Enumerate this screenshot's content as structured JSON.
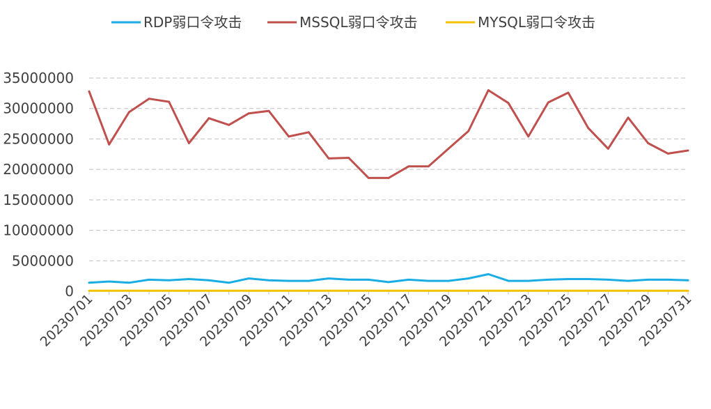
{
  "chart_data": {
    "type": "line",
    "title": "",
    "xlabel": "",
    "ylabel": "",
    "ylim": [
      0,
      35000000
    ],
    "yticks": [
      0,
      5000000,
      10000000,
      15000000,
      20000000,
      25000000,
      30000000,
      35000000
    ],
    "grid": "horizontal dashed",
    "legend_position": "top",
    "x": [
      "20230701",
      "20230702",
      "20230703",
      "20230704",
      "20230705",
      "20230706",
      "20230707",
      "20230708",
      "20230709",
      "20230710",
      "20230711",
      "20230712",
      "20230713",
      "20230714",
      "20230715",
      "20230716",
      "20230717",
      "20230718",
      "20230719",
      "20230720",
      "20230721",
      "20230722",
      "20230723",
      "20230724",
      "20230725",
      "20230726",
      "20230727",
      "20230728",
      "20230729",
      "20230730",
      "20230731"
    ],
    "x_tick_labels": [
      "20230701",
      "20230703",
      "20230705",
      "20230707",
      "20230709",
      "20230711",
      "20230713",
      "20230715",
      "20230717",
      "20230719",
      "20230721",
      "20230723",
      "20230725",
      "20230727",
      "20230729",
      "20230731"
    ],
    "series": [
      {
        "name": "RDP弱口令攻击",
        "color": "#1AADE4",
        "values": [
          1400000,
          1600000,
          1400000,
          1900000,
          1800000,
          2000000,
          1800000,
          1400000,
          2100000,
          1800000,
          1700000,
          1700000,
          2100000,
          1900000,
          1900000,
          1500000,
          1900000,
          1700000,
          1700000,
          2100000,
          2800000,
          1700000,
          1700000,
          1900000,
          2000000,
          2000000,
          1900000,
          1700000,
          1900000,
          1900000,
          1800000
        ]
      },
      {
        "name": "MSSQL弱口令攻击",
        "color": "#C0504D",
        "values": [
          32800000,
          24100000,
          29400000,
          31600000,
          31100000,
          24300000,
          28400000,
          27300000,
          29200000,
          29600000,
          25400000,
          26100000,
          21800000,
          21900000,
          18600000,
          18600000,
          20500000,
          20500000,
          23400000,
          26300000,
          33000000,
          30900000,
          25400000,
          31000000,
          32600000,
          26800000,
          23400000,
          28500000,
          24300000,
          22600000,
          23100000
        ]
      },
      {
        "name": "MYSQL弱口令攻击",
        "color": "#F2C200",
        "values": [
          80000,
          80000,
          80000,
          80000,
          80000,
          80000,
          80000,
          80000,
          80000,
          80000,
          80000,
          80000,
          80000,
          80000,
          80000,
          80000,
          80000,
          80000,
          80000,
          80000,
          80000,
          80000,
          80000,
          80000,
          80000,
          80000,
          80000,
          80000,
          80000,
          80000,
          80000
        ]
      }
    ]
  }
}
